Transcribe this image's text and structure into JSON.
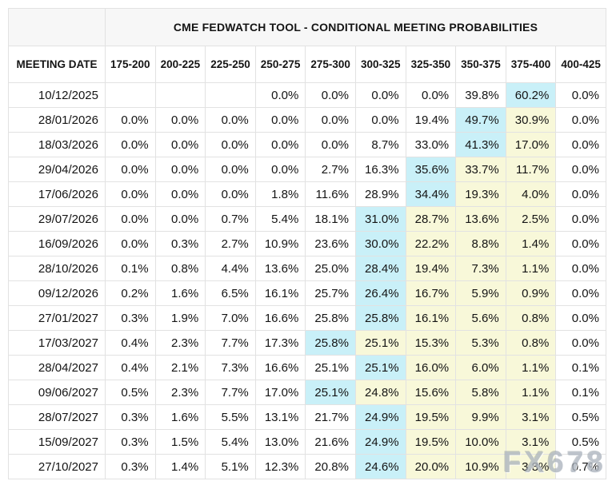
{
  "header": {
    "title": "CME FEDWATCH TOOL - CONDITIONAL MEETING PROBABILITIES"
  },
  "watermark": {
    "text": "FX678"
  },
  "colors": {
    "highlight_cyan": "#c9f0f8",
    "highlight_yellow": "#f8f8d9",
    "header_bg": "#f7f7f7",
    "border": "#e2e2e2",
    "text": "#141414",
    "watermark": "#aeb6c0"
  },
  "chart_data": {
    "type": "table",
    "title": "CME FEDWATCH TOOL - CONDITIONAL MEETING PROBABILITIES",
    "columns": [
      "MEETING DATE",
      "175-200",
      "200-225",
      "225-250",
      "250-275",
      "275-300",
      "300-325",
      "325-350",
      "350-375",
      "375-400",
      "400-425"
    ],
    "rows": [
      {
        "date": "10/12/2025",
        "values": [
          "",
          "",
          "",
          "0.0%",
          "0.0%",
          "0.0%",
          "0.0%",
          "39.8%",
          "60.2%",
          "0.0%"
        ],
        "cyan_col": 8,
        "yellow_cols": []
      },
      {
        "date": "28/01/2026",
        "values": [
          "0.0%",
          "0.0%",
          "0.0%",
          "0.0%",
          "0.0%",
          "0.0%",
          "19.4%",
          "49.7%",
          "30.9%",
          "0.0%"
        ],
        "cyan_col": 7,
        "yellow_cols": [
          8
        ]
      },
      {
        "date": "18/03/2026",
        "values": [
          "0.0%",
          "0.0%",
          "0.0%",
          "0.0%",
          "0.0%",
          "8.7%",
          "33.0%",
          "41.3%",
          "17.0%",
          "0.0%"
        ],
        "cyan_col": 7,
        "yellow_cols": [
          8
        ]
      },
      {
        "date": "29/04/2026",
        "values": [
          "0.0%",
          "0.0%",
          "0.0%",
          "0.0%",
          "2.7%",
          "16.3%",
          "35.6%",
          "33.7%",
          "11.7%",
          "0.0%"
        ],
        "cyan_col": 6,
        "yellow_cols": [
          7,
          8
        ]
      },
      {
        "date": "17/06/2026",
        "values": [
          "0.0%",
          "0.0%",
          "0.0%",
          "1.8%",
          "11.6%",
          "28.9%",
          "34.4%",
          "19.3%",
          "4.0%",
          "0.0%"
        ],
        "cyan_col": 6,
        "yellow_cols": [
          7,
          8
        ]
      },
      {
        "date": "29/07/2026",
        "values": [
          "0.0%",
          "0.0%",
          "0.7%",
          "5.4%",
          "18.1%",
          "31.0%",
          "28.7%",
          "13.6%",
          "2.5%",
          "0.0%"
        ],
        "cyan_col": 5,
        "yellow_cols": [
          6,
          7,
          8
        ]
      },
      {
        "date": "16/09/2026",
        "values": [
          "0.0%",
          "0.3%",
          "2.7%",
          "10.9%",
          "23.6%",
          "30.0%",
          "22.2%",
          "8.8%",
          "1.4%",
          "0.0%"
        ],
        "cyan_col": 5,
        "yellow_cols": [
          6,
          7,
          8
        ]
      },
      {
        "date": "28/10/2026",
        "values": [
          "0.1%",
          "0.8%",
          "4.4%",
          "13.6%",
          "25.0%",
          "28.4%",
          "19.4%",
          "7.3%",
          "1.1%",
          "0.0%"
        ],
        "cyan_col": 5,
        "yellow_cols": [
          6,
          7,
          8
        ]
      },
      {
        "date": "09/12/2026",
        "values": [
          "0.2%",
          "1.6%",
          "6.5%",
          "16.1%",
          "25.7%",
          "26.4%",
          "16.7%",
          "5.9%",
          "0.9%",
          "0.0%"
        ],
        "cyan_col": 5,
        "yellow_cols": [
          6,
          7,
          8
        ]
      },
      {
        "date": "27/01/2027",
        "values": [
          "0.3%",
          "1.9%",
          "7.0%",
          "16.6%",
          "25.8%",
          "25.8%",
          "16.1%",
          "5.6%",
          "0.8%",
          "0.0%"
        ],
        "cyan_col": 5,
        "yellow_cols": [
          6,
          7,
          8
        ]
      },
      {
        "date": "17/03/2027",
        "values": [
          "0.4%",
          "2.3%",
          "7.7%",
          "17.3%",
          "25.8%",
          "25.1%",
          "15.3%",
          "5.3%",
          "0.8%",
          "0.0%"
        ],
        "cyan_col": 4,
        "yellow_cols": [
          5,
          6,
          7,
          8
        ]
      },
      {
        "date": "28/04/2027",
        "values": [
          "0.4%",
          "2.1%",
          "7.3%",
          "16.6%",
          "25.1%",
          "25.1%",
          "16.0%",
          "6.0%",
          "1.1%",
          "0.1%"
        ],
        "cyan_col": 5,
        "yellow_cols": [
          6,
          7,
          8
        ]
      },
      {
        "date": "09/06/2027",
        "values": [
          "0.5%",
          "2.3%",
          "7.7%",
          "17.0%",
          "25.1%",
          "24.8%",
          "15.6%",
          "5.8%",
          "1.1%",
          "0.1%"
        ],
        "cyan_col": 4,
        "yellow_cols": [
          5,
          6,
          7,
          8
        ]
      },
      {
        "date": "28/07/2027",
        "values": [
          "0.3%",
          "1.6%",
          "5.5%",
          "13.1%",
          "21.7%",
          "24.9%",
          "19.5%",
          "9.9%",
          "3.1%",
          "0.5%"
        ],
        "cyan_col": 5,
        "yellow_cols": [
          6,
          7,
          8
        ]
      },
      {
        "date": "15/09/2027",
        "values": [
          "0.3%",
          "1.5%",
          "5.4%",
          "13.0%",
          "21.6%",
          "24.9%",
          "19.5%",
          "10.0%",
          "3.1%",
          "0.5%"
        ],
        "cyan_col": 5,
        "yellow_cols": [
          6,
          7,
          8
        ]
      },
      {
        "date": "27/10/2027",
        "values": [
          "0.3%",
          "1.4%",
          "5.1%",
          "12.3%",
          "20.8%",
          "24.6%",
          "20.0%",
          "10.9%",
          "3.8%",
          "0.7%"
        ],
        "cyan_col": 5,
        "yellow_cols": [
          6,
          7,
          8
        ]
      }
    ]
  }
}
